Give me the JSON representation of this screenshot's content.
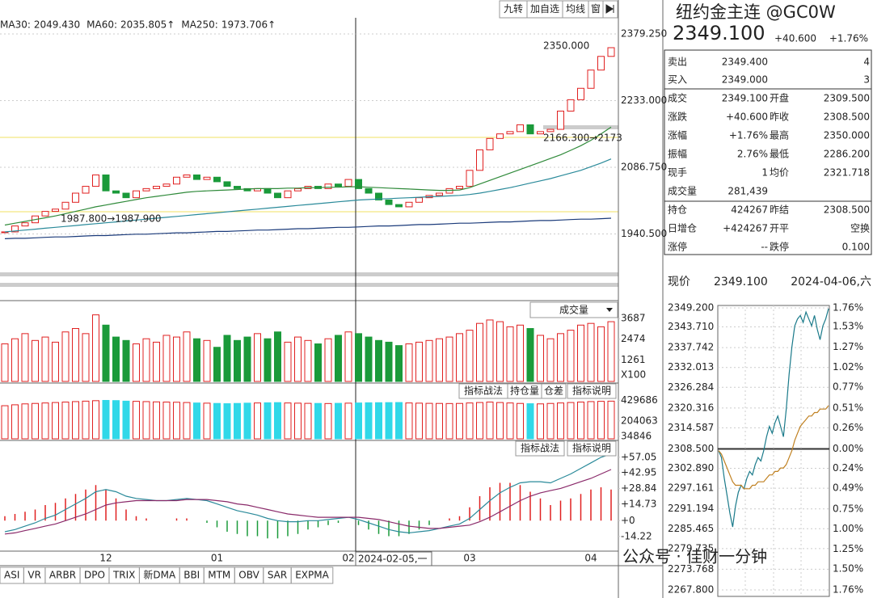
{
  "toolbar": {
    "buttons": [
      "九转",
      "加自选",
      "均线",
      "窗"
    ]
  },
  "panel_buttons": {
    "oi": [
      "指标战法",
      "持仓量",
      "仓差",
      "指标说明"
    ],
    "macd": [
      "指标战法",
      "指标说明"
    ],
    "volume": "成交量"
  },
  "annotations": [
    "2350.000",
    "2166.300→2173",
    "1987.800→1987.900"
  ],
  "cursor_label": "2024-02-05,一",
  "tabs": [
    "ASI",
    "VR",
    "ARBR",
    "DPO",
    "TRIX",
    "新DMA",
    "BBI",
    "MTM",
    "OBV",
    "SAR",
    "EXPMA"
  ],
  "watermark": "公众号 · 佳财一分钟",
  "quote": {
    "title": "纽约金主连 @GC0W",
    "price": "2349.100",
    "change": "+40.600",
    "change_pct": "+1.76%",
    "rows": [
      [
        {
          "text": "卖出"
        },
        {
          "text": "2349.400",
          "color": "#d02020"
        },
        {
          "text": ""
        },
        {
          "text": "4",
          "color": "#1a8a9a"
        }
      ],
      [
        {
          "text": "买入"
        },
        {
          "text": "2349.000",
          "color": "#d02020"
        },
        {
          "text": ""
        },
        {
          "text": "3",
          "color": "#1a8a9a"
        }
      ],
      [
        {
          "text": "成交"
        },
        {
          "text": "2349.100",
          "color": "#d02020"
        },
        {
          "text": "开盘"
        },
        {
          "text": "2309.500",
          "color": "#d02020"
        }
      ],
      [
        {
          "text": "涨跌"
        },
        {
          "text": "+40.600",
          "color": "#d02020"
        },
        {
          "text": "昨收"
        },
        {
          "text": "2308.500"
        }
      ],
      [
        {
          "text": "涨幅"
        },
        {
          "text": "+1.76%",
          "color": "#d02020"
        },
        {
          "text": "最高"
        },
        {
          "text": "2350.000",
          "color": "#d02020"
        }
      ],
      [
        {
          "text": "振幅"
        },
        {
          "text": "2.76%",
          "color": "#1a8a9a"
        },
        {
          "text": "最低"
        },
        {
          "text": "2286.200",
          "color": "#1a9a3a"
        }
      ],
      [
        {
          "text": "现手"
        },
        {
          "text": "1"
        },
        {
          "text": "均价"
        },
        {
          "text": "2321.718",
          "color": "#d02020"
        }
      ],
      [
        {
          "text": "成交量"
        },
        {
          "text": "281,439"
        },
        {
          "text": ""
        },
        {
          "text": ""
        }
      ],
      [
        {
          "text": "持仓"
        },
        {
          "text": "424267",
          "color": "#1a8a9a"
        },
        {
          "text": "昨结"
        },
        {
          "text": "2308.500"
        }
      ],
      [
        {
          "text": "日增仓"
        },
        {
          "text": "+424267",
          "color": "#1a8a9a"
        },
        {
          "text": "开平"
        },
        {
          "text": "空换",
          "color": "#1a8a9a"
        }
      ],
      [
        {
          "text": "涨停"
        },
        {
          "text": "--"
        },
        {
          "text": "跌停"
        },
        {
          "text": "0.100",
          "color": "#1a9a3a"
        }
      ]
    ],
    "now_label": "现价",
    "now_price": "2349.100",
    "date": "2024-04-06,六"
  },
  "chart_data": [
    {
      "type": "candlestick",
      "ylim": [
        1797.8,
        2414.7
      ],
      "yticks": [
        {
          "value": 2379.25,
          "label": "2379.250"
        },
        {
          "value": 2233,
          "label": "2233.000"
        },
        {
          "value": 2086.75,
          "label": "2086.750"
        },
        {
          "value": 1940.5,
          "label": "1940.500"
        }
      ],
      "categories": [
        null,
        null,
        null,
        null,
        null,
        null,
        null,
        null,
        null,
        null,
        "12",
        null,
        null,
        null,
        null,
        null,
        null,
        null,
        null,
        null,
        null,
        "01",
        null,
        null,
        null,
        null,
        null,
        null,
        null,
        null,
        null,
        null,
        null,
        null,
        "02",
        null,
        null,
        null,
        null,
        null,
        null,
        null,
        null,
        null,
        null,
        null,
        "03",
        null,
        null,
        null,
        null,
        null,
        null,
        null,
        null,
        null,
        null,
        null,
        "04",
        null,
        null
      ],
      "close": [
        1945,
        1958,
        1965,
        1980,
        1990,
        1995,
        2010,
        2030,
        2045,
        2070,
        2035,
        2030,
        2020,
        2035,
        2040,
        2045,
        2050,
        2065,
        2070,
        2060,
        2065,
        2055,
        2045,
        2040,
        2035,
        2040,
        2030,
        2020,
        2035,
        2040,
        2045,
        2040,
        2050,
        2045,
        2060,
        2040,
        2030,
        2015,
        2005,
        2000,
        2010,
        2020,
        2025,
        2030,
        2040,
        2045,
        2080,
        2125,
        2150,
        2160,
        2165,
        2180,
        2160,
        2165,
        2170,
        2210,
        2235,
        2260,
        2300,
        2330,
        2349.1
      ],
      "up_color": "#e02020",
      "down_color": "#1a9a3a",
      "series": [
        {
          "name": "MA30:",
          "color": "#2f8a3a",
          "last": 2049.43,
          "last_label": "2049.430",
          "values": [
            1960,
            1964,
            1968,
            1972,
            1976,
            1980,
            1985,
            1990,
            1995,
            2000,
            2004,
            2008,
            2012,
            2016,
            2020,
            2023,
            2026,
            2029,
            2032,
            2034,
            2035,
            2036,
            2037,
            2038,
            2039,
            2040,
            2040,
            2040,
            2041,
            2041,
            2042,
            2042,
            2043,
            2043,
            2044,
            2044,
            2043,
            2042,
            2041,
            2040,
            2039,
            2038,
            2037,
            2036,
            2036,
            2037,
            2042,
            2050,
            2058,
            2066,
            2074,
            2082,
            2090,
            2098,
            2106,
            2114,
            2124,
            2134,
            2146,
            2160,
            2175
          ]
        },
        {
          "name": "MA60:",
          "color": "#2a8a9a",
          "last": 2035.805,
          "last_label": "2035.805",
          "arrow": "↑",
          "values": [
            1945,
            1947,
            1949,
            1951,
            1953,
            1955,
            1957,
            1959,
            1961,
            1963,
            1965,
            1967,
            1969,
            1971,
            1973,
            1975,
            1977,
            1979,
            1981,
            1983,
            1985,
            1987,
            1989,
            1991,
            1993,
            1995,
            1997,
            1999,
            2001,
            2003,
            2005,
            2007,
            2009,
            2011,
            2013,
            2015,
            2016,
            2017,
            2018,
            2019,
            2020,
            2021,
            2022,
            2023,
            2024,
            2025,
            2027,
            2030,
            2034,
            2038,
            2042,
            2047,
            2052,
            2057,
            2062,
            2068,
            2074,
            2080,
            2088,
            2096,
            2105
          ]
        },
        {
          "name": "MA250:",
          "color": "#1a3a7a",
          "last": 1973.706,
          "last_label": "1973.706",
          "arrow": "↑",
          "values": [
            1930,
            1931,
            1931,
            1932,
            1933,
            1934,
            1934,
            1935,
            1936,
            1937,
            1937,
            1938,
            1939,
            1940,
            1940,
            1941,
            1942,
            1943,
            1943,
            1944,
            1945,
            1946,
            1946,
            1947,
            1948,
            1949,
            1949,
            1950,
            1951,
            1952,
            1952,
            1953,
            1954,
            1955,
            1955,
            1956,
            1957,
            1958,
            1958,
            1959,
            1960,
            1961,
            1961,
            1962,
            1963,
            1964,
            1964,
            1965,
            1966,
            1967,
            1967,
            1968,
            1969,
            1970,
            1970,
            1971,
            1972,
            1973,
            1973,
            1974,
            1975
          ]
        }
      ]
    },
    {
      "type": "bar",
      "ylim": [
        0,
        4450
      ],
      "yticks": [
        3687,
        2474,
        1261
      ],
      "x_unit": "X100",
      "values": [
        2200,
        2500,
        2800,
        2400,
        2600,
        2300,
        2900,
        3100,
        2800,
        3900,
        3300,
        2600,
        2400,
        2200,
        2500,
        2300,
        2700,
        2600,
        2900,
        2500,
        2400,
        2000,
        2700,
        2400,
        2600,
        2800,
        2500,
        2900,
        2300,
        2600,
        2400,
        2200,
        2500,
        2700,
        2900,
        2800,
        2600,
        2400,
        2300,
        2100,
        2200,
        2300,
        2400,
        2500,
        2600,
        2800,
        3000,
        3400,
        3600,
        3500,
        3200,
        3300,
        3100,
        2700,
        2500,
        2800,
        3000,
        3300,
        3400,
        3200,
        3500
      ]
    },
    {
      "type": "bar",
      "ylim": [
        7800,
        582686
      ],
      "yticks": [
        429686,
        204063,
        34846
      ],
      "down_color": "#30d8e8",
      "values": [
        370000,
        380000,
        390000,
        395000,
        400000,
        405000,
        410000,
        415000,
        420000,
        425000,
        428000,
        426000,
        420000,
        418000,
        415000,
        412000,
        410000,
        408000,
        405000,
        400000,
        398000,
        395000,
        392000,
        395000,
        398000,
        400000,
        402000,
        404000,
        400000,
        398000,
        396000,
        395000,
        394000,
        396000,
        398000,
        400000,
        402000,
        403000,
        404000,
        405000,
        400000,
        398000,
        396000,
        395000,
        394000,
        395000,
        400000,
        405000,
        410000,
        405000,
        400000,
        395000,
        392000,
        390000,
        395000,
        400000,
        405000,
        410000,
        415000,
        418000,
        420000
      ]
    },
    {
      "type": "macd",
      "ylim": [
        -26,
        70
      ],
      "yticks": [
        {
          "value": 57.05,
          "label": "+57.05"
        },
        {
          "value": 42.95,
          "label": "+42.95"
        },
        {
          "value": 28.84,
          "label": "+28.84"
        },
        {
          "value": 14.73,
          "label": "+14.73"
        },
        {
          "value": 0,
          "label": "+0"
        },
        -14.22
      ],
      "dif": {
        "color": "#2a8a9a",
        "values": [
          -10,
          -8,
          -5,
          -2,
          2,
          5,
          10,
          15,
          20,
          26,
          28,
          26,
          22,
          20,
          19,
          18,
          18,
          19,
          20,
          19,
          18,
          15,
          12,
          9,
          7,
          5,
          2,
          0,
          -1,
          -1,
          0,
          0,
          1,
          2,
          3,
          1,
          -2,
          -5,
          -8,
          -10,
          -11,
          -10,
          -9,
          -7,
          -5,
          -3,
          2,
          10,
          18,
          25,
          30,
          34,
          35,
          35,
          34,
          38,
          42,
          47,
          52,
          57,
          60
        ]
      },
      "dea": {
        "color": "#8a2a6a",
        "values": [
          -12,
          -11,
          -9,
          -7,
          -5,
          -3,
          0,
          3,
          6,
          10,
          14,
          16,
          17,
          18,
          18,
          18,
          18,
          18,
          19,
          19,
          19,
          18,
          17,
          15,
          14,
          12,
          10,
          8,
          6,
          5,
          4,
          3,
          3,
          3,
          3,
          3,
          2,
          1,
          -1,
          -3,
          -5,
          -6,
          -7,
          -7,
          -6,
          -5,
          -4,
          -1,
          3,
          8,
          13,
          18,
          22,
          25,
          27,
          29,
          32,
          35,
          38,
          42,
          46
        ]
      },
      "hist": [
        4,
        6,
        8,
        10,
        14,
        16,
        20,
        24,
        28,
        32,
        28,
        20,
        10,
        4,
        2,
        0,
        0,
        2,
        2,
        0,
        -2,
        -6,
        -10,
        -12,
        -14,
        -14,
        -16,
        -16,
        -14,
        -12,
        -8,
        -6,
        -4,
        -2,
        0,
        -4,
        -8,
        -12,
        -14,
        -14,
        -12,
        -8,
        -4,
        0,
        2,
        4,
        12,
        22,
        30,
        34,
        34,
        32,
        26,
        20,
        14,
        18,
        20,
        24,
        28,
        30,
        28
      ]
    },
    {
      "type": "line",
      "ylim": [
        2267.8,
        2349.2
      ],
      "yticks": [
        {
          "value": 2349.2,
          "label": "2349.200"
        },
        {
          "value": 2343.71,
          "label": "2343.710"
        },
        2337.742,
        2332.013,
        2326.284,
        2320.316,
        2314.587,
        {
          "value": 2308.5,
          "label": "2308.500"
        },
        {
          "value": 2302.89,
          "label": "2302.890"
        },
        2297.161,
        2291.194,
        2285.465,
        2279.735,
        2273.768,
        {
          "value": 2267.8,
          "label": "2267.800"
        }
      ],
      "y2lim": [
        -1.76,
        1.76
      ],
      "y2ticks": [
        {
          "value": 1.76,
          "label": "1.76%"
        },
        {
          "value": 1.53,
          "label": "1.53%"
        },
        {
          "value": 1.27,
          "label": "1.27%"
        },
        {
          "value": 1.02,
          "label": "1.02%"
        },
        {
          "value": 0.77,
          "label": "0.77%"
        },
        {
          "value": 0.51,
          "label": "0.51%"
        },
        {
          "value": 0.26,
          "label": "0.26%"
        },
        {
          "value": 0,
          "label": "0.00%"
        },
        {
          "value": -0.24,
          "label": "0.24%"
        },
        {
          "value": -0.49,
          "label": "0.49%"
        },
        {
          "value": -0.75,
          "label": "0.75%"
        },
        {
          "value": -1,
          "label": "1.00%"
        },
        {
          "value": -1.25,
          "label": "1.25%"
        },
        {
          "value": -1.5,
          "label": "1.50%"
        },
        {
          "value": -1.76,
          "label": "1.76%"
        }
      ],
      "series": [
        {
          "color": "#1a7a8a",
          "values": [
            2308,
            2306,
            2300,
            2295,
            2290,
            2286,
            2292,
            2296,
            2298,
            2297,
            2300,
            2302,
            2301,
            2304,
            2306,
            2305,
            2308,
            2312,
            2315,
            2313,
            2316,
            2318,
            2315,
            2312,
            2320,
            2330,
            2338,
            2344,
            2346,
            2347,
            2345,
            2348,
            2346,
            2344,
            2347,
            2343,
            2340,
            2344,
            2346,
            2349
          ]
        },
        {
          "color": "#c08020",
          "values": [
            2308,
            2307,
            2305,
            2303,
            2301,
            2299,
            2298,
            2298,
            2298,
            2297,
            2297,
            2297,
            2298,
            2298,
            2299,
            2299,
            2299,
            2300,
            2301,
            2301,
            2302,
            2302,
            2303,
            2303,
            2304,
            2306,
            2308,
            2311,
            2313,
            2315,
            2316,
            2317,
            2318,
            2318,
            2319,
            2319,
            2320,
            2320,
            2320,
            2321
          ]
        }
      ]
    }
  ]
}
